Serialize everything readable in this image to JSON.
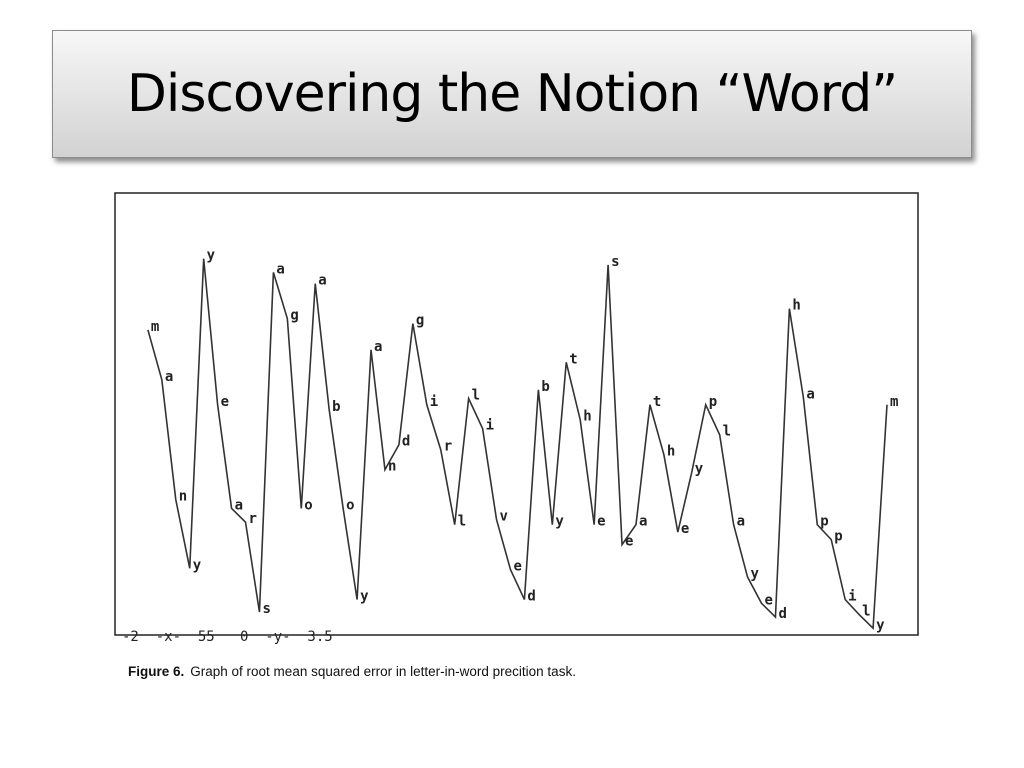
{
  "title": "Discovering the Notion “Word”",
  "chart_data": {
    "type": "line",
    "axis_note": "-2  -x-  55   0  -y-  3.5",
    "caption_label": "Figure 6.",
    "caption_text": "Graph of root mean squared error in letter-in-word precition task.",
    "xlim": [
      -2,
      55
    ],
    "ylim": [
      0,
      3.5
    ],
    "x": [
      0,
      1,
      2,
      3,
      4,
      5,
      6,
      7,
      8,
      9,
      10,
      11,
      12,
      13,
      14,
      15,
      16,
      17,
      18,
      19,
      20,
      21,
      22,
      23,
      24,
      25,
      26,
      27,
      28,
      29,
      30,
      31,
      32,
      33,
      34,
      35,
      36,
      37,
      38,
      39,
      40,
      41,
      42,
      43,
      44,
      45,
      46,
      47,
      48,
      49,
      50,
      51,
      52,
      53
    ],
    "point_labels": [
      "m",
      "a",
      "n",
      "y",
      "y",
      "e",
      "a",
      "r",
      "s",
      "a",
      "g",
      "o",
      "a",
      "b",
      "o",
      "y",
      "a",
      "n",
      "d",
      "g",
      "i",
      "r",
      "l",
      "l",
      "i",
      "v",
      "e",
      "d",
      "b",
      "y",
      "t",
      "h",
      "e",
      "s",
      "e",
      "a",
      "t",
      "h",
      "e",
      "y",
      "p",
      "l",
      "a",
      "y",
      "e",
      "d",
      "h",
      "a",
      "p",
      "p",
      "i",
      "l",
      "y",
      "m"
    ],
    "values": [
      2.42,
      2.02,
      1.06,
      0.51,
      2.99,
      1.82,
      0.99,
      0.88,
      0.16,
      2.88,
      2.51,
      0.99,
      2.79,
      1.78,
      0.99,
      0.26,
      2.26,
      1.3,
      1.5,
      2.47,
      1.82,
      1.46,
      0.86,
      1.87,
      1.63,
      0.9,
      0.5,
      0.26,
      1.94,
      0.86,
      2.16,
      1.7,
      0.86,
      2.94,
      0.7,
      0.86,
      1.82,
      1.42,
      0.8,
      1.28,
      1.82,
      1.58,
      0.86,
      0.44,
      0.23,
      0.12,
      2.59,
      1.88,
      0.86,
      0.74,
      0.26,
      0.14,
      0.03,
      1.82
    ],
    "color": "#333333"
  }
}
